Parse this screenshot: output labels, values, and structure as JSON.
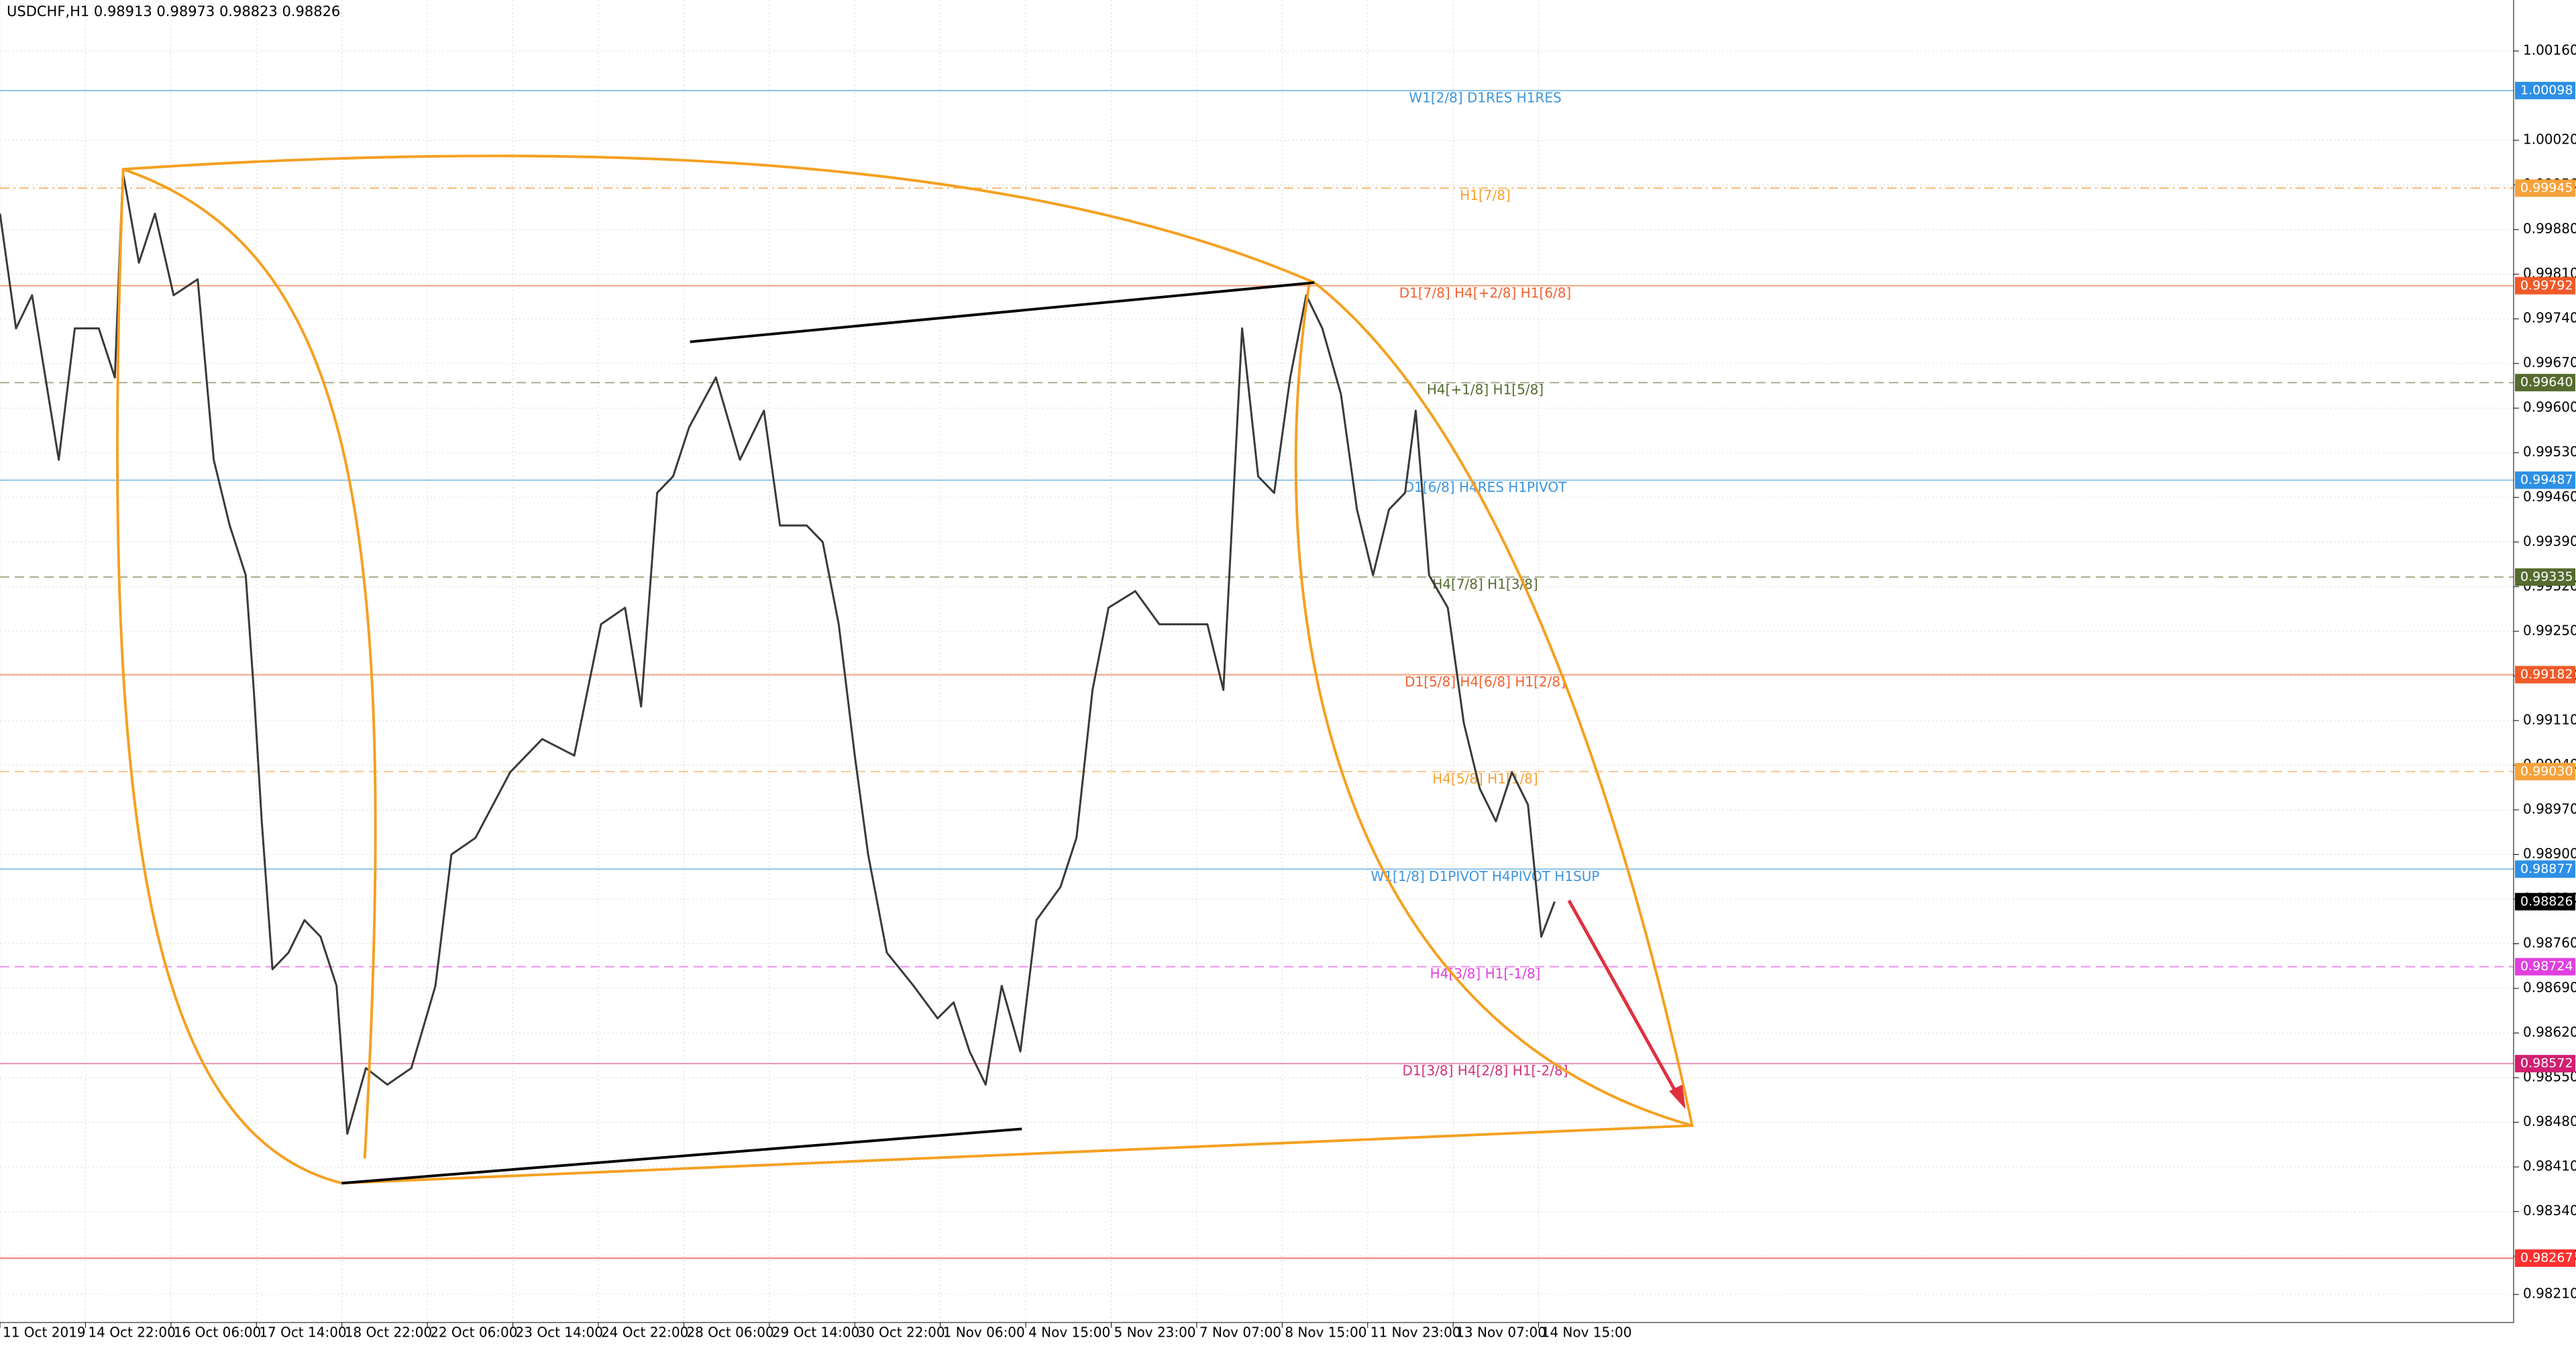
{
  "chart_data": {
    "type": "line",
    "title": "USDCHF,H1 0.98913 0.98973 0.98823 0.98826",
    "color": "#3a3a3a",
    "grid": true,
    "x": [
      0,
      6,
      12,
      22,
      28,
      37,
      43,
      46,
      52,
      58,
      65,
      74,
      80,
      86,
      92,
      95,
      98,
      102,
      108,
      114,
      120,
      126,
      130,
      137,
      145,
      154,
      163,
      169,
      178,
      191,
      203,
      215,
      225,
      234,
      240,
      246,
      252,
      258,
      268,
      277,
      286,
      292,
      302,
      308,
      314,
      320,
      325,
      332,
      342,
      351,
      357,
      363,
      369,
      375,
      382,
      388,
      397,
      403,
      409,
      415,
      425,
      434,
      443,
      452,
      458,
      465,
      471,
      477,
      483,
      489,
      495,
      502,
      508,
      514,
      520,
      526,
      530,
      535,
      542,
      548,
      554,
      560,
      566,
      572,
      577,
      582
    ],
    "values": [
      0.99905,
      0.99725,
      0.99777,
      0.99519,
      0.99725,
      0.99725,
      0.99648,
      0.9997,
      0.99828,
      0.99905,
      0.99777,
      0.99802,
      0.99519,
      0.99416,
      0.99338,
      0.99158,
      0.98952,
      0.9872,
      0.98746,
      0.98797,
      0.98771,
      0.98694,
      0.98462,
      0.98565,
      0.98539,
      0.98565,
      0.98694,
      0.989,
      0.98926,
      0.99029,
      0.99081,
      0.99055,
      0.99261,
      0.99287,
      0.99132,
      0.99467,
      0.99493,
      0.9957,
      0.99648,
      0.99519,
      0.99596,
      0.99416,
      0.99416,
      0.9939,
      0.99261,
      0.99055,
      0.989,
      0.98746,
      0.98694,
      0.98643,
      0.98668,
      0.98591,
      0.98539,
      0.98694,
      0.98591,
      0.98797,
      0.98849,
      0.98926,
      0.99158,
      0.99287,
      0.99313,
      0.99261,
      0.99261,
      0.99261,
      0.99158,
      0.99725,
      0.99493,
      0.99467,
      0.99648,
      0.99777,
      0.99725,
      0.99622,
      0.99441,
      0.99338,
      0.99441,
      0.99467,
      0.99596,
      0.99338,
      0.99287,
      0.99106,
      0.99003,
      0.98952,
      0.99029,
      0.98978,
      0.98771,
      0.98826
    ],
    "xlim": [
      0,
      941
    ],
    "xticks": [
      {
        "value": 0,
        "label": "11 Oct 2019"
      },
      {
        "value": 32,
        "label": "14 Oct 22:00"
      },
      {
        "value": 64,
        "label": "16 Oct 06:00"
      },
      {
        "value": 96,
        "label": "17 Oct 14:00"
      },
      {
        "value": 128,
        "label": "18 Oct 22:00"
      },
      {
        "value": 160,
        "label": "22 Oct 06:00"
      },
      {
        "value": 192,
        "label": "23 Oct 14:00"
      },
      {
        "value": 224,
        "label": "24 Oct 22:00"
      },
      {
        "value": 256,
        "label": "28 Oct 06:00"
      },
      {
        "value": 288,
        "label": "29 Oct 14:00"
      },
      {
        "value": 320,
        "label": "30 Oct 22:00"
      },
      {
        "value": 352,
        "label": "1 Nov 06:00"
      },
      {
        "value": 384,
        "label": "4 Nov 15:00"
      },
      {
        "value": 416,
        "label": "5 Nov 23:00"
      },
      {
        "value": 448,
        "label": "7 Nov 07:00"
      },
      {
        "value": 480,
        "label": "8 Nov 15:00"
      },
      {
        "value": 512,
        "label": "11 Nov 23:00"
      },
      {
        "value": 544,
        "label": "13 Nov 07:00"
      },
      {
        "value": 576,
        "label": "14 Nov 15:00"
      }
    ],
    "ylim": [
      0.98166,
      1.0024
    ],
    "yticks": [
      {
        "value": 1.0016,
        "label": "1.00160"
      },
      {
        "value": 1.0002,
        "label": "1.00020"
      },
      {
        "value": 0.9995,
        "label": "0.99950"
      },
      {
        "value": 0.9988,
        "label": "0.99880"
      },
      {
        "value": 0.9981,
        "label": "0.99810"
      },
      {
        "value": 0.9974,
        "label": "0.99740"
      },
      {
        "value": 0.9967,
        "label": "0.99670"
      },
      {
        "value": 0.996,
        "label": "0.99600"
      },
      {
        "value": 0.9953,
        "label": "0.99530"
      },
      {
        "value": 0.9946,
        "label": "0.99460"
      },
      {
        "value": 0.9939,
        "label": "0.99390"
      },
      {
        "value": 0.9932,
        "label": "0.99320"
      },
      {
        "value": 0.9925,
        "label": "0.99250"
      },
      {
        "value": 0.9918,
        "label": "0.99180"
      },
      {
        "value": 0.9911,
        "label": "0.99110"
      },
      {
        "value": 0.9904,
        "label": "0.99040"
      },
      {
        "value": 0.9897,
        "label": "0.98970"
      },
      {
        "value": 0.989,
        "label": "0.98900"
      },
      {
        "value": 0.9883,
        "label": "0.98830"
      },
      {
        "value": 0.9876,
        "label": "0.98760"
      },
      {
        "value": 0.9869,
        "label": "0.98690"
      },
      {
        "value": 0.9862,
        "label": "0.98620"
      },
      {
        "value": 0.9855,
        "label": "0.98550"
      },
      {
        "value": 0.9848,
        "label": "0.98480"
      },
      {
        "value": 0.9841,
        "label": "0.98410"
      },
      {
        "value": 0.9834,
        "label": "0.98340"
      },
      {
        "value": 0.9827,
        "label": "0.98270"
      },
      {
        "value": 0.9821,
        "label": "0.98210"
      }
    ],
    "levels": [
      {
        "value": 1.00098,
        "text": "W1[2/8] D1RES H1RES",
        "color": "#3d95dc",
        "line_color": "#8cc3ec",
        "marker": "#2d8fe6",
        "dash": "solid"
      },
      {
        "value": 0.99945,
        "text": "H1[7/8]",
        "color": "#f5a030",
        "line_color": "#f7b870",
        "marker": "#f7a23a",
        "dash": "dashdot"
      },
      {
        "value": 0.99792,
        "text": "D1[7/8] H4[+2/8] H1[6/8]",
        "color": "#f0622e",
        "line_color": "#f4a27c",
        "marker": "#f05a28",
        "dash": "solid"
      },
      {
        "value": 0.9964,
        "value_label": "0.99640",
        "text": "H4[+1/8] H1[5/8]",
        "color": "#556b2f",
        "line_color": "#a9ad8c",
        "marker": "#556b2f",
        "dash": "dashed"
      },
      {
        "value": 0.99487,
        "text": "D1[6/8] H4RES H1PIVOT",
        "color": "#3d95dc",
        "line_color": "#8cc3ec",
        "marker": "#2d8fe6",
        "dash": "solid"
      },
      {
        "value": 0.99335,
        "text": "H4[7/8] H1[3/8]",
        "color": "#556b2f",
        "line_color": "#a9ad8c",
        "marker": "#556b2f",
        "dash": "dashed"
      },
      {
        "value": 0.99182,
        "text": "D1[5/8] H4[6/8] H1[2/8]",
        "color": "#f0622e",
        "line_color": "#f4a27c",
        "marker": "#f05a28",
        "dash": "solid"
      },
      {
        "value": 0.9903,
        "value_label": "0.99030",
        "text": "H4[5/8] H1[1/8]",
        "color": "#f5a030",
        "line_color": "#f7c890",
        "marker": "#f7a23a",
        "dash": "dashed"
      },
      {
        "value": 0.98877,
        "text": "W1[1/8] D1PIVOT H4PIVOT H1SUP",
        "color": "#3d95dc",
        "line_color": "#8cc3ec",
        "marker": "#2d8fe6",
        "dash": "solid"
      },
      {
        "value": 0.98724,
        "text": "H4[3/8] H1[-1/8]",
        "color": "#e040e0",
        "line_color": "#ee90ee",
        "marker": "#e040e0",
        "dash": "dashed"
      },
      {
        "value": 0.98572,
        "text": "D1[3/8] H4[2/8] H1[-2/8]",
        "color": "#d0307a",
        "line_color": "#e890b8",
        "marker": "#d02070",
        "dash": "solid"
      },
      {
        "value": 0.98267,
        "color": "#ff3030",
        "line_color": "#ff8080",
        "marker": "#ff3030",
        "dash": "solid"
      }
    ],
    "current_price": 0.98826
  }
}
